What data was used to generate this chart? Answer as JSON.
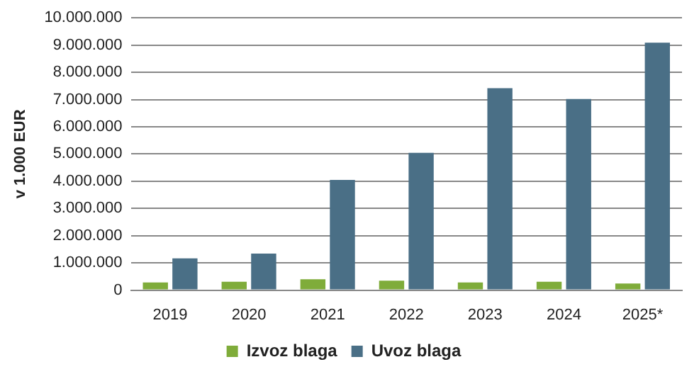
{
  "chart_data": {
    "type": "bar",
    "ylabel": "v 1.000 EUR",
    "categories": [
      "2019",
      "2020",
      "2021",
      "2022",
      "2023",
      "2024",
      "2025*"
    ],
    "series": [
      {
        "name": "Izvoz blaga",
        "color": "#7fac3a",
        "values": [
          280000,
          310000,
          400000,
          350000,
          280000,
          310000,
          240000
        ]
      },
      {
        "name": "Uvoz blaga",
        "color": "#4a6f86",
        "values": [
          1170000,
          1340000,
          4050000,
          5040000,
          7420000,
          7020000,
          9090000
        ]
      }
    ],
    "ylim": [
      0,
      10000000
    ],
    "yticks": [
      0,
      {
        "value": 1000000,
        "label": "1.000.000"
      },
      {
        "value": 2000000,
        "label": "2.000.000"
      },
      {
        "value": 3000000,
        "label": "3.000.000"
      },
      {
        "value": 4000000,
        "label": "4.000.000"
      },
      {
        "value": 5000000,
        "label": "5.000.000"
      },
      {
        "value": 6000000,
        "label": "6.000.000"
      },
      {
        "value": 7000000,
        "label": "7.000.000"
      },
      {
        "value": 8000000,
        "label": "8.000.000"
      },
      {
        "value": 9000000,
        "label": "9.000.000"
      },
      {
        "value": 10000000,
        "label": "10.000.000"
      }
    ],
    "grid": "y",
    "legend": "bottom"
  }
}
